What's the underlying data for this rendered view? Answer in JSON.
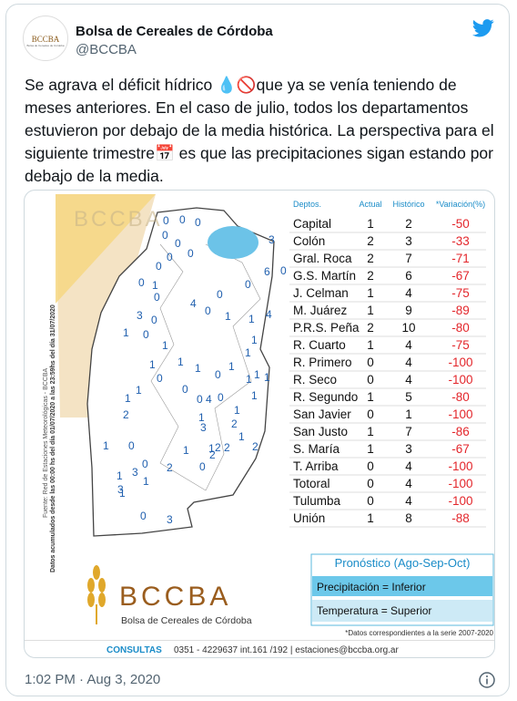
{
  "tweet": {
    "author": "Bolsa de Cereales de Córdoba",
    "handle": "@BCCBA",
    "avatar_text": "BCCBA",
    "avatar_sub": "Bolsa de Cereales de Córdoba",
    "text": "Se agrava el déficit hídrico 💧🚫que ya se venía teniendo de meses anteriores. En el caso de julio, todos los departamentos estuvieron por debajo de la media histórica. La perspectiva para el siguiente trimestre📅 es que las precipitaciones sigan estando por debajo de la media.",
    "timestamp": "1:02 PM · Aug 3, 2020"
  },
  "image": {
    "watermark": "BCCBA",
    "side_source": "Fuente: Red de Estaciones Meteorológicas - BCCBA",
    "side_period": "Datos acumulados desde las 00:00 hs del día 01/07/2020 a las 23:59hs del día 31/07/2020",
    "map": {
      "labels": [
        0,
        0,
        0,
        0,
        0,
        0,
        0,
        0,
        0,
        1,
        0,
        0,
        4,
        0,
        1,
        3,
        0,
        1,
        0,
        1,
        1,
        0,
        6,
        0,
        3,
        1,
        4,
        1,
        1,
        1,
        1,
        0,
        1,
        1,
        1,
        1,
        0,
        0,
        0,
        4,
        0,
        1,
        1,
        1,
        1,
        1,
        2,
        1,
        3,
        2,
        2,
        2,
        2,
        1,
        0,
        2,
        0,
        3,
        3,
        1,
        1,
        2,
        1,
        0,
        3,
        1,
        0,
        1
      ]
    },
    "table": {
      "headers": [
        "Deptos.",
        "Actual",
        "Histórico",
        "*Variación(%)"
      ],
      "rows": [
        [
          "Capital",
          1,
          2,
          -50
        ],
        [
          "Colón",
          2,
          3,
          -33
        ],
        [
          "Gral. Roca",
          2,
          7,
          -71
        ],
        [
          "G.S. Martín",
          2,
          6,
          -67
        ],
        [
          "J. Celman",
          1,
          4,
          -75
        ],
        [
          "M. Juárez",
          1,
          9,
          -89
        ],
        [
          "P.R.S. Peña",
          2,
          10,
          -80
        ],
        [
          "R. Cuarto",
          1,
          4,
          -75
        ],
        [
          "R. Primero",
          0,
          4,
          -100
        ],
        [
          "R. Seco",
          0,
          4,
          -100
        ],
        [
          "R. Segundo",
          1,
          5,
          -80
        ],
        [
          "San Javier",
          0,
          1,
          -100
        ],
        [
          "San Justo",
          1,
          7,
          -86
        ],
        [
          "S. María",
          1,
          3,
          -67
        ],
        [
          "T. Arriba",
          0,
          4,
          -100
        ],
        [
          "Totoral",
          0,
          4,
          -100
        ],
        [
          "Tulumba",
          0,
          4,
          -100
        ],
        [
          "Unión",
          1,
          8,
          -88
        ]
      ]
    },
    "forecast": {
      "title": "Pronóstico (Ago-Sep-Oct)",
      "rows": [
        "Precipitación = Inferior",
        "Temperatura = Superior"
      ]
    },
    "footnote": "*Datos correspondientes a la serie 2007-2020",
    "logo": {
      "name": "BCCBA",
      "subtitle": "Bolsa de Cereales de Córdoba"
    },
    "contact": {
      "label": "CONSULTAS",
      "details": "0351 - 4229637 int.161 /192 | estaciones@bccba.org.ar"
    }
  }
}
